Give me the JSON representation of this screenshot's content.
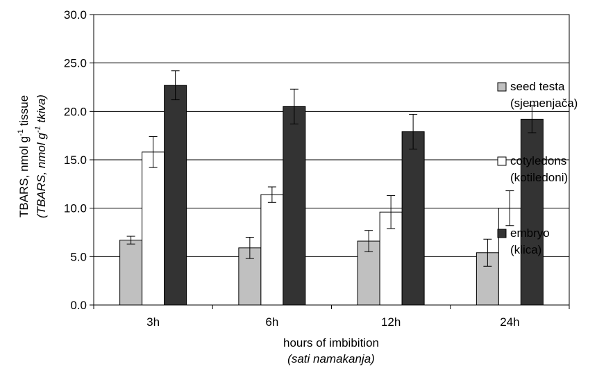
{
  "chart_data": {
    "type": "bar",
    "categories": [
      "3h",
      "6h",
      "12h",
      "24h"
    ],
    "series": [
      {
        "name": "seed testa",
        "name_sub": "(sjemenjača)",
        "color": "#c0c0c0",
        "values": [
          6.7,
          5.9,
          6.6,
          5.4
        ],
        "errors": [
          0.4,
          1.1,
          1.1,
          1.4
        ]
      },
      {
        "name": "cotyledons",
        "name_sub": "(kotiledoni)",
        "color": "#ffffff",
        "values": [
          15.8,
          11.4,
          9.6,
          10.0
        ],
        "errors": [
          1.6,
          0.8,
          1.7,
          1.8
        ]
      },
      {
        "name": "embryo",
        "name_sub": "(klica)",
        "color": "#333333",
        "values": [
          22.7,
          20.5,
          17.9,
          19.2
        ],
        "errors": [
          1.5,
          1.8,
          1.8,
          1.4
        ]
      }
    ],
    "xlabel": "hours of imbibition",
    "xlabel_sub": "(sati namakanja)",
    "ylabel": "TBARS, nmol g",
    "ylabel_suffix": " tissue",
    "ylabel_sub": "(TBARS, nmol g",
    "ylabel_sub_suffix": " tkiva)",
    "ylabel_exponent": "-1",
    "ylim": [
      0,
      30
    ],
    "yticks": [
      "0.0",
      "5.0",
      "10.0",
      "15.0",
      "20.0",
      "25.0",
      "30.0"
    ],
    "grid": true,
    "legend_position": "right"
  }
}
